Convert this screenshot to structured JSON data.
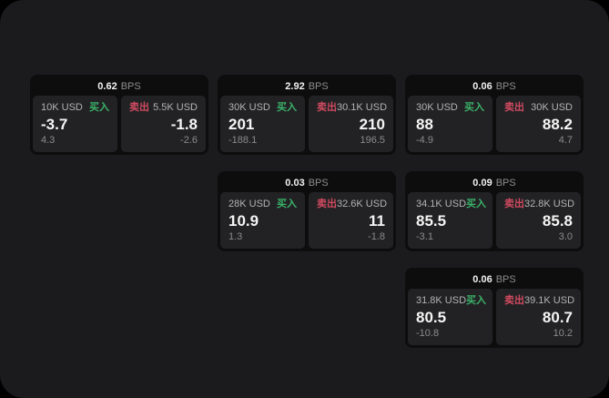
{
  "colors": {
    "outer_background": "#000000",
    "panel_background": "#1b1b1d",
    "card_background": "#0d0d0e",
    "tile_background": "#222224",
    "buy_green": "#3bb36a",
    "sell_red": "#cf4a60",
    "text_primary": "#f5f5f5",
    "text_muted": "#8b8b8b"
  },
  "labels": {
    "bps_unit": "BPS",
    "buy": "买入",
    "sell": "卖出"
  },
  "cards": [
    {
      "col": 1,
      "row": 1,
      "bps": "0.62",
      "buy": {
        "amount": "10K USD",
        "price": "-3.7",
        "delta": "4.3"
      },
      "sell": {
        "amount": "5.5K USD",
        "price": "-1.8",
        "delta": "-2.6"
      }
    },
    {
      "col": 2,
      "row": 1,
      "bps": "2.92",
      "buy": {
        "amount": "30K USD",
        "price": "201",
        "delta": "-188.1"
      },
      "sell": {
        "amount": "30.1K USD",
        "price": "210",
        "delta": "196.5"
      }
    },
    {
      "col": 3,
      "row": 1,
      "bps": "0.06",
      "buy": {
        "amount": "30K USD",
        "price": "88",
        "delta": "-4.9"
      },
      "sell": {
        "amount": "30K USD",
        "price": "88.2",
        "delta": "4.7"
      }
    },
    {
      "col": 2,
      "row": 2,
      "bps": "0.03",
      "buy": {
        "amount": "28K USD",
        "price": "10.9",
        "delta": "1.3"
      },
      "sell": {
        "amount": "32.6K USD",
        "price": "11",
        "delta": "-1.8"
      }
    },
    {
      "col": 3,
      "row": 2,
      "bps": "0.09",
      "buy": {
        "amount": "34.1K USD",
        "price": "85.5",
        "delta": "-3.1"
      },
      "sell": {
        "amount": "32.8K USD",
        "price": "85.8",
        "delta": "3.0"
      }
    },
    {
      "col": 3,
      "row": 3,
      "bps": "0.06",
      "buy": {
        "amount": "31.8K USD",
        "price": "80.5",
        "delta": "-10.8"
      },
      "sell": {
        "amount": "39.1K USD",
        "price": "80.7",
        "delta": "10.2"
      }
    }
  ]
}
